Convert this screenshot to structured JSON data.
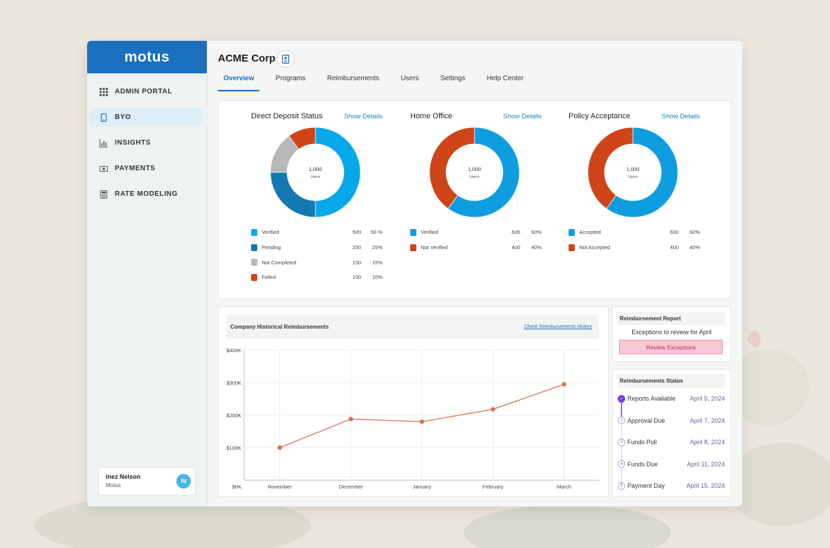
{
  "app": {
    "logo": "motus",
    "company": "ACME Corp"
  },
  "colors": {
    "accent": "#1a6fbf",
    "verified": "#06a8ea",
    "pending": "#1379b0",
    "not_completed": "#b8b8b8",
    "failed": "#cf4518",
    "chart_line": "#d4705a",
    "timeline_done": "#7a3ddc"
  },
  "sidebar": {
    "items": [
      {
        "label": "ADMIN PORTAL",
        "icon": "grid-icon"
      },
      {
        "label": "BYO",
        "icon": "phone-icon"
      },
      {
        "label": "INSIGHTS",
        "icon": "bar-chart-icon"
      },
      {
        "label": "PAYMENTS",
        "icon": "cash-icon"
      },
      {
        "label": "RATE MODELING",
        "icon": "calculator-icon"
      }
    ],
    "user": {
      "name": "Inez Nelson",
      "org": "Motus",
      "initials": "IN"
    }
  },
  "tabs": [
    "Overview",
    "Programs",
    "Reimbursements",
    "Users",
    "Settings",
    "Help Center"
  ],
  "donuts": [
    {
      "title": "Direct Deposit Status",
      "link": "Show Details",
      "center_value": "1,000",
      "center_label": "Users",
      "legend": [
        {
          "label": "Verified",
          "value": 500,
          "value_text": "500",
          "pct": "50 %",
          "color": "#06a8ea"
        },
        {
          "label": "Pending",
          "value": 250,
          "value_text": "250",
          "pct": "25%",
          "color": "#1379b0"
        },
        {
          "label": "Not Completed",
          "value": 150,
          "value_text": "150",
          "pct": "15%",
          "color": "#b8b8b8"
        },
        {
          "label": "Failed",
          "value": 100,
          "value_text": "100",
          "pct": "10%",
          "color": "#cf4518"
        }
      ]
    },
    {
      "title": "Home Office",
      "link": "Show Details",
      "center_value": "1,000",
      "center_label": "Users",
      "legend": [
        {
          "label": "Verified",
          "value": 600,
          "value_text": "600",
          "pct": "60%",
          "color": "#0e9ee0"
        },
        {
          "label": "Not Verified",
          "value": 400,
          "value_text": "400",
          "pct": "40%",
          "color": "#cf4518"
        }
      ]
    },
    {
      "title": "Policy Acceptance",
      "link": "Show Details",
      "center_value": "1,000",
      "center_label": "Users",
      "legend": [
        {
          "label": "Accepted",
          "value": 600,
          "value_text": "600",
          "pct": "60%",
          "color": "#0e9ee0"
        },
        {
          "label": "Not Accepted",
          "value": 400,
          "value_text": "400",
          "pct": "40%",
          "color": "#cf4518"
        }
      ]
    }
  ],
  "history": {
    "title": "Company Historical Reimbursements",
    "link": "Check Reimbursements History"
  },
  "chart_data": {
    "type": "line",
    "categories": [
      "November",
      "December",
      "January",
      "February",
      "March"
    ],
    "values": [
      100,
      188,
      180,
      218,
      295
    ],
    "ylim": [
      0,
      400
    ],
    "yticks": [
      "$0K",
      "$100K",
      "$200K",
      "$300K",
      "$400K"
    ],
    "grid": true
  },
  "report": {
    "title": "Reimbursement Report",
    "text": "Exceptions to review for April",
    "button": "Review Exceptions"
  },
  "status": {
    "title": "Reimbursements Status",
    "steps": [
      {
        "n": "✓",
        "label": "Reports Available",
        "date": "April 5, 2024",
        "done": true
      },
      {
        "n": "2",
        "label": "Approval Due",
        "date": "April 7, 2024",
        "done": false
      },
      {
        "n": "3",
        "label": "Funds Pull",
        "date": "April 8, 2024",
        "done": false
      },
      {
        "n": "4",
        "label": "Funds Due",
        "date": "April 11, 2024",
        "done": false
      },
      {
        "n": "5",
        "label": "Payment Day",
        "date": "April 15, 2024",
        "done": false
      }
    ]
  }
}
